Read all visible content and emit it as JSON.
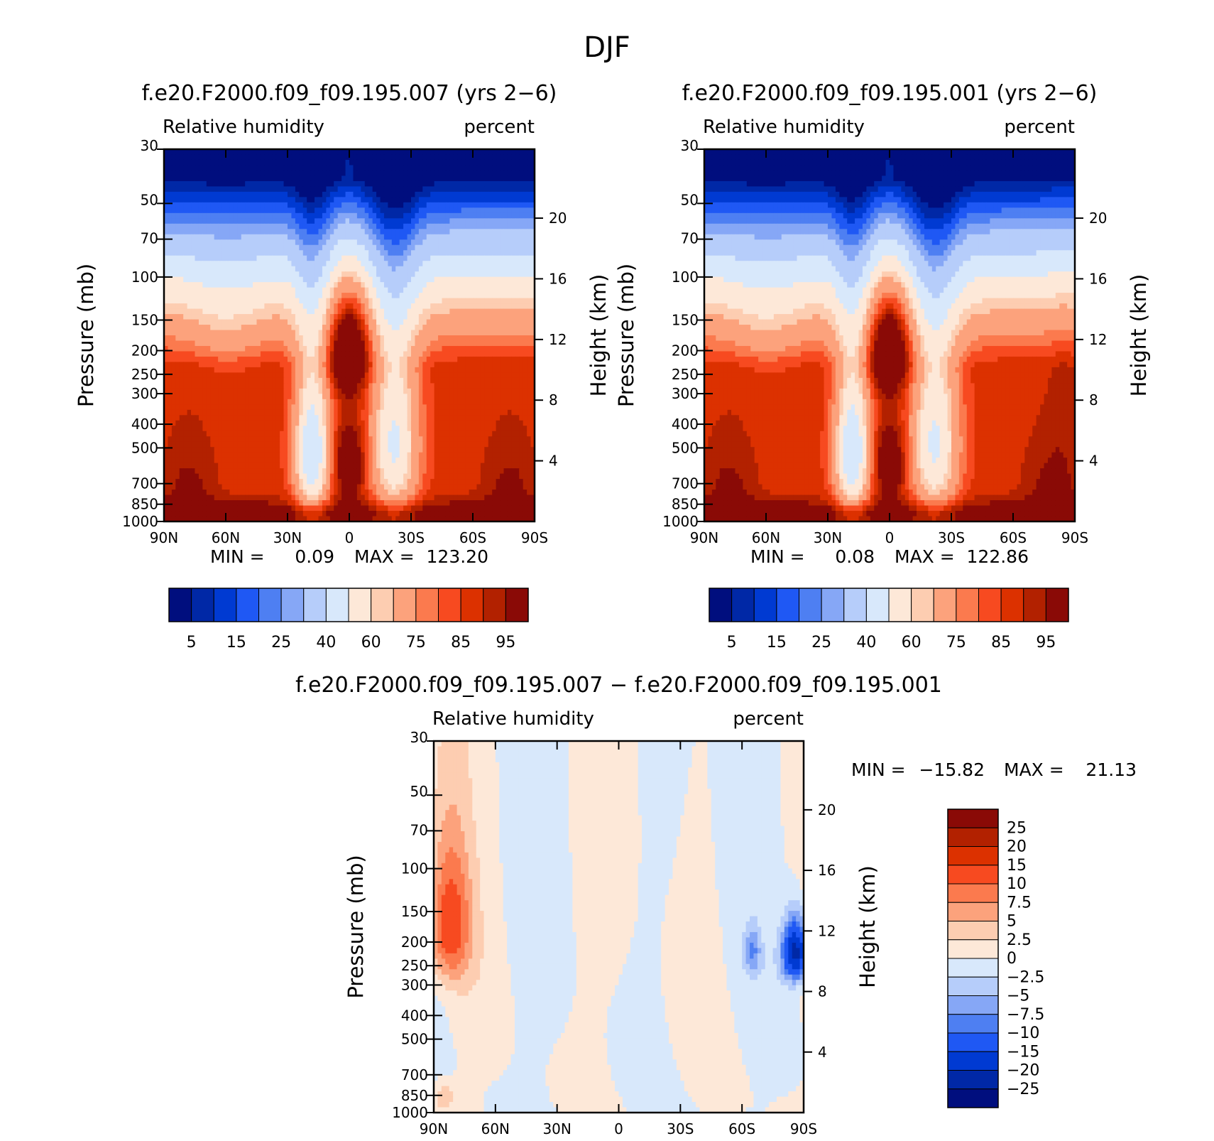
{
  "page_title": "DJF",
  "colors": {
    "abs_levels": [
      "#000e7e",
      "#0028a6",
      "#003ad2",
      "#1f58f4",
      "#4e7ff2",
      "#86a7f6",
      "#b6cdfa",
      "#d8e8fb",
      "#fde8d8",
      "#fdcdb1",
      "#fca27c",
      "#fb7a4e",
      "#f74a20",
      "#dc3100",
      "#b22100",
      "#8a0a06"
    ],
    "diff_levels": [
      "#000e7e",
      "#0028a6",
      "#003ad2",
      "#1f58f4",
      "#4e7ff2",
      "#86a7f6",
      "#b6cdfa",
      "#d8e8fb",
      "#fde8d8",
      "#fdcdb1",
      "#fca27c",
      "#fb7a4e",
      "#f74a20",
      "#dc3100",
      "#b22100",
      "#8a0a06"
    ]
  },
  "chart_data": [
    {
      "id": "case1",
      "type": "heatmap",
      "title": "f.e20.F2000.f09_f09.195.007 (yrs 2−6)",
      "left_label": "Relative humidity",
      "right_label": "percent",
      "ylabel": "Pressure (mb)",
      "y2label": "Height (km)",
      "x_ticks": [
        "90N",
        "60N",
        "30N",
        "0",
        "30S",
        "60S",
        "90S"
      ],
      "y_ticks": [
        "30",
        "50",
        "70",
        "100",
        "150",
        "200",
        "250",
        "300",
        "400",
        "500",
        "700",
        "850",
        "1000"
      ],
      "y2_ticks": [
        "20",
        "16",
        "12",
        "8",
        "4"
      ],
      "min_label": "MIN =",
      "min_value": "0.09",
      "max_label": "MAX =",
      "max_value": "123.20",
      "colorbar_labels": [
        "5",
        "15",
        "25",
        "40",
        "60",
        "75",
        "85",
        "95"
      ]
    },
    {
      "id": "case2",
      "type": "heatmap",
      "title": "f.e20.F2000.f09_f09.195.001 (yrs 2−6)",
      "left_label": "Relative humidity",
      "right_label": "percent",
      "ylabel": "Pressure (mb)",
      "y2label": "Height (km)",
      "x_ticks": [
        "90N",
        "60N",
        "30N",
        "0",
        "30S",
        "60S",
        "90S"
      ],
      "y_ticks": [
        "30",
        "50",
        "70",
        "100",
        "150",
        "200",
        "250",
        "300",
        "400",
        "500",
        "700",
        "850",
        "1000"
      ],
      "y2_ticks": [
        "20",
        "16",
        "12",
        "8",
        "4"
      ],
      "min_label": "MIN =",
      "min_value": "0.08",
      "max_label": "MAX =",
      "max_value": "122.86",
      "colorbar_labels": [
        "5",
        "15",
        "25",
        "40",
        "60",
        "75",
        "85",
        "95"
      ]
    },
    {
      "id": "diff",
      "type": "heatmap",
      "title": "f.e20.F2000.f09_f09.195.007 − f.e20.F2000.f09_f09.195.001",
      "left_label": "Relative humidity",
      "right_label": "percent",
      "ylabel": "Pressure (mb)",
      "y2label": "Height (km)",
      "x_ticks": [
        "90N",
        "60N",
        "30N",
        "0",
        "30S",
        "60S",
        "90S"
      ],
      "y_ticks": [
        "30",
        "50",
        "70",
        "100",
        "150",
        "200",
        "250",
        "300",
        "400",
        "500",
        "700",
        "850",
        "1000"
      ],
      "y2_ticks": [
        "20",
        "16",
        "12",
        "8",
        "4"
      ],
      "min_label": "MIN =",
      "min_value": "−15.82",
      "max_label": "MAX =",
      "max_value": "21.13",
      "colorbar_labels": [
        "25",
        "20",
        "15",
        "10",
        "7.5",
        "5",
        "2.5",
        "0",
        "−2.5",
        "−5",
        "−7.5",
        "−10",
        "−15",
        "−20",
        "−25"
      ]
    }
  ]
}
